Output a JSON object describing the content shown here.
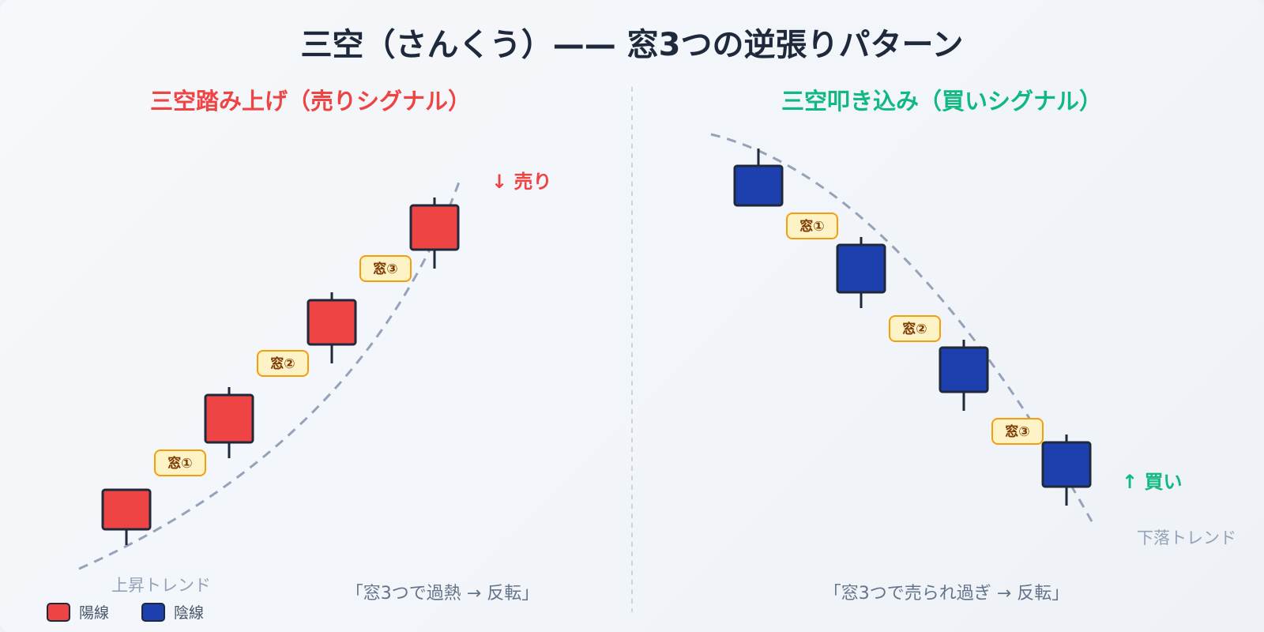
{
  "title": "三空（さんくう）—— 窓3つの逆張りパターン",
  "colors": {
    "bull": "#ef4444",
    "bear": "#1e40af",
    "sell": "#ef4444",
    "buy": "#10b981",
    "trend_line": "#94a3b8",
    "gap_fill": "#fef3c7",
    "gap_stroke": "#f59e0b",
    "divider": "#cbd5e1"
  },
  "left": {
    "heading": "三空踏み上げ（売りシグナル）",
    "signal": "↓ 売り",
    "trend_label": "上昇トレンド",
    "quote": "「窓3つで過熱 → 反転」",
    "gap_labels": [
      "窓①",
      "窓②",
      "窓③"
    ],
    "candle_type": "陽線"
  },
  "right": {
    "heading": "三空叩き込み（買いシグナル）",
    "signal": "↑ 買い",
    "trend_label": "下落トレンド",
    "quote": "「窓3つで売られ過ぎ → 反転」",
    "gap_labels": [
      "窓①",
      "窓②",
      "窓③"
    ],
    "candle_type": "陰線"
  },
  "legend": [
    {
      "label": "陽線",
      "color": "#ef4444"
    },
    {
      "label": "陰線",
      "color": "#1e40af"
    }
  ]
}
